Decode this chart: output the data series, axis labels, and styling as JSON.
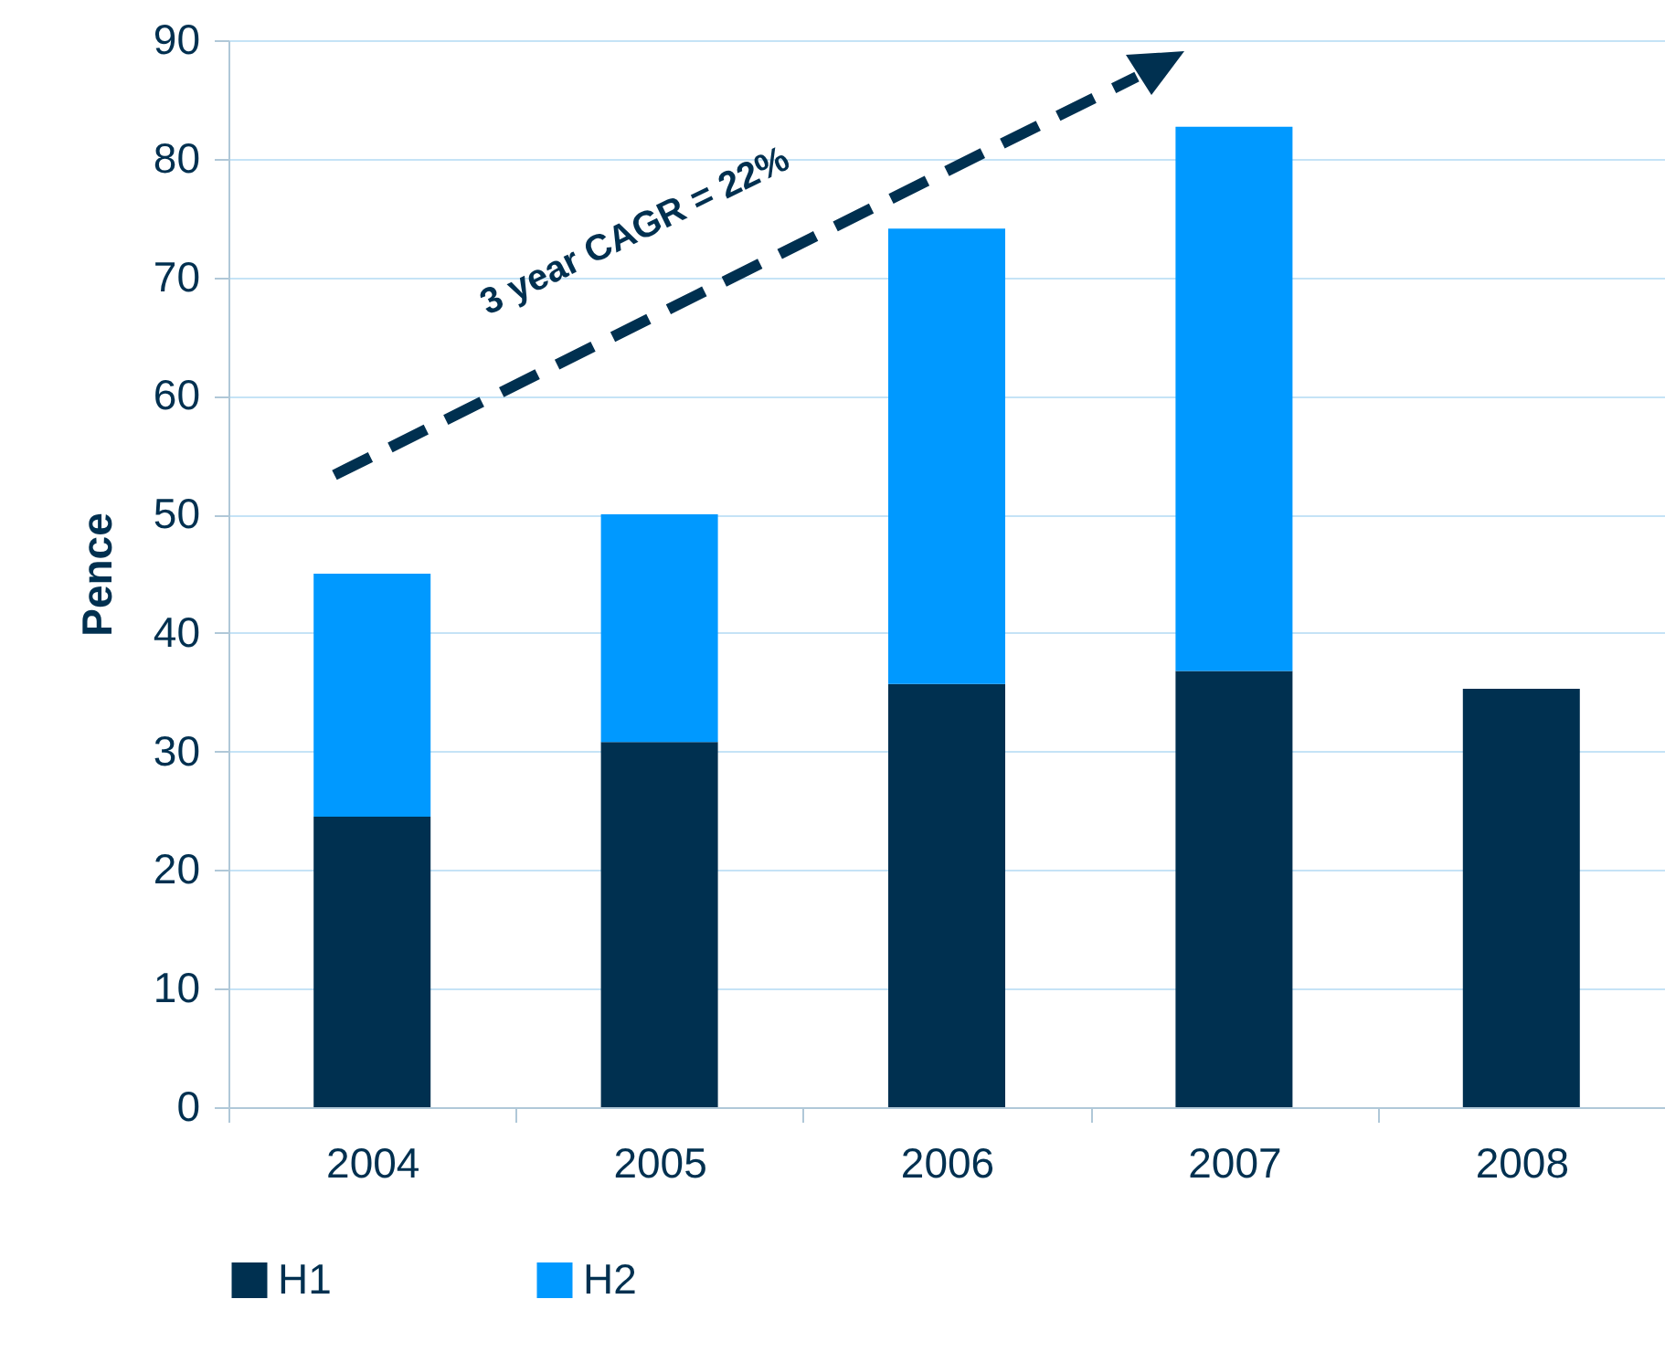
{
  "chart_data": {
    "type": "bar",
    "stacked": true,
    "ylabel": "Pence",
    "categories": [
      "2004",
      "2005",
      "2006",
      "2007",
      "2008"
    ],
    "series": [
      {
        "name": "H1",
        "color": "#003050",
        "values": [
          24.5,
          30.8,
          35.7,
          36.8,
          35.3
        ]
      },
      {
        "name": "H2",
        "color": "#0099ff",
        "values": [
          20.5,
          19.2,
          38.4,
          45.9,
          null
        ]
      }
    ],
    "ylim": [
      0,
      90
    ],
    "yticks": [
      0,
      10,
      20,
      30,
      40,
      50,
      60,
      70,
      80,
      90
    ],
    "grid": "y",
    "legend": "bottom",
    "annotations": [
      "3 year CAGR = 22%"
    ]
  }
}
